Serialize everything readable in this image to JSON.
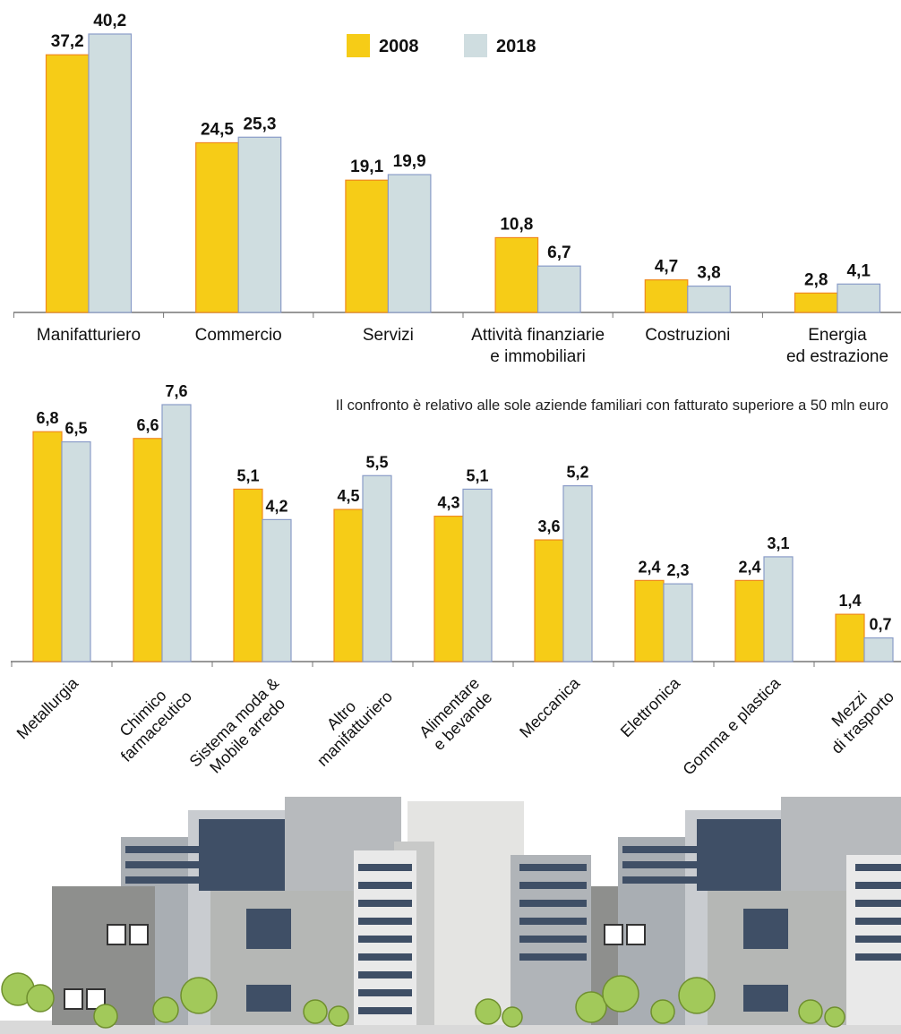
{
  "chart_data": [
    {
      "type": "bar",
      "categories": [
        "Manifatturiero",
        "Commercio",
        "Servizi",
        "Attività finanziarie\ne immobiliari",
        "Costruzioni",
        "Energia\ned estrazione"
      ],
      "series": [
        {
          "name": "2008",
          "color": "#f6cc17",
          "values": [
            37.2,
            24.5,
            19.1,
            10.8,
            4.7,
            2.8
          ],
          "value_labels": [
            "37,2",
            "24,5",
            "19,1",
            "10,8",
            "4,7",
            "2,8"
          ]
        },
        {
          "name": "2018",
          "color": "#cfdde0",
          "values": [
            40.2,
            25.3,
            19.9,
            6.7,
            3.8,
            4.1
          ],
          "value_labels": [
            "40,2",
            "25,3",
            "19,9",
            "6,7",
            "3,8",
            "4,1"
          ]
        }
      ]
    },
    {
      "type": "bar",
      "annotation": "Il confronto è relativo alle sole aziende familiari con fatturato superiore a 50 mln euro",
      "categories": [
        "Metallurgia",
        "Chimico\nfarmaceutico",
        "Sistema moda &\nMobile arredo",
        "Altro\nmanifatturiero",
        "Alimentare\ne bevande",
        "Meccanica",
        "Elettronica",
        "Gomma e plastica",
        "Mezzi\ndi trasporto"
      ],
      "series": [
        {
          "name": "2008",
          "color": "#f6cc17",
          "values": [
            6.8,
            6.6,
            5.1,
            4.5,
            4.3,
            3.6,
            2.4,
            2.4,
            1.4
          ],
          "value_labels": [
            "6,8",
            "6,6",
            "5,1",
            "4,5",
            "4,3",
            "3,6",
            "2,4",
            "2,4",
            "1,4"
          ]
        },
        {
          "name": "2018",
          "color": "#cfdde0",
          "values": [
            6.5,
            7.6,
            4.2,
            5.5,
            5.1,
            5.2,
            2.3,
            3.1,
            0.7
          ],
          "value_labels": [
            "6,5",
            "7,6",
            "4,2",
            "5,5",
            "5,1",
            "5,2",
            "2,3",
            "3,1",
            "0,7"
          ]
        }
      ]
    }
  ]
}
